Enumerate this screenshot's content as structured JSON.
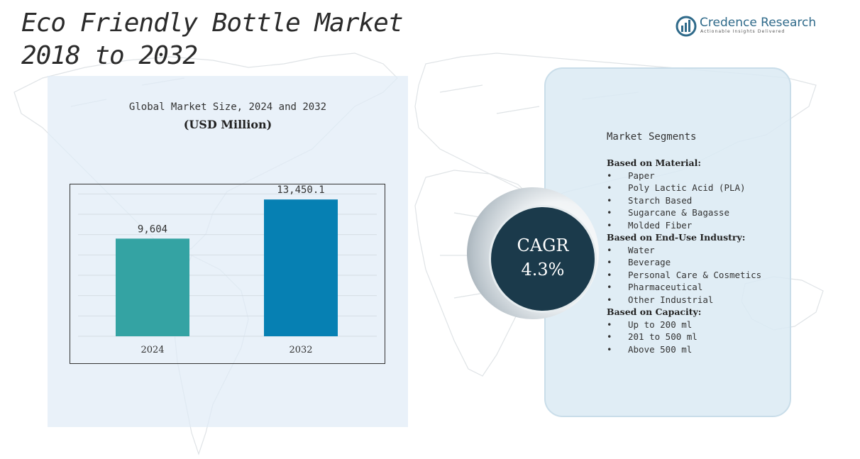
{
  "header": {
    "title_line1": "Eco Friendly Bottle Market",
    "title_line2": "2018 to 2032"
  },
  "brand": {
    "name": "Credence Research",
    "tagline": "Actionable Insights Delivered",
    "color": "#2f6a8a"
  },
  "chart": {
    "heading": "Global Market Size, 2024 and 2032",
    "unit": "(USD Million)"
  },
  "chart_data": {
    "type": "bar",
    "title": "Global Market Size, 2024 and 2032",
    "subtitle": "(USD Million)",
    "categories": [
      "2024",
      "2032"
    ],
    "values": [
      9604,
      13450.1
    ],
    "value_labels": [
      "9,604",
      "13,450.1"
    ],
    "colors": [
      "#34a3a3",
      "#0680b3"
    ],
    "xlabel": "",
    "ylabel": "",
    "ylim": [
      0,
      15000
    ],
    "grid": true,
    "legend": "none"
  },
  "segments": {
    "title": "Market Segments",
    "groups": [
      {
        "heading": "Based on Material:",
        "items": [
          "Paper",
          "Poly Lactic Acid (PLA)",
          "Starch Based",
          "Sugarcane & Bagasse",
          "Molded Fiber"
        ]
      },
      {
        "heading": "Based on End-Use Industry:",
        "items": [
          "Water",
          "Beverage",
          "Personal Care & Cosmetics",
          "Pharmaceutical",
          "Other Industrial"
        ]
      },
      {
        "heading": "Based on Capacity:",
        "items": [
          "Up to 200 ml",
          "201 to 500 ml",
          "Above 500 ml"
        ]
      }
    ]
  },
  "cagr": {
    "label": "CAGR",
    "value": "4.3%"
  },
  "bullet": "•"
}
